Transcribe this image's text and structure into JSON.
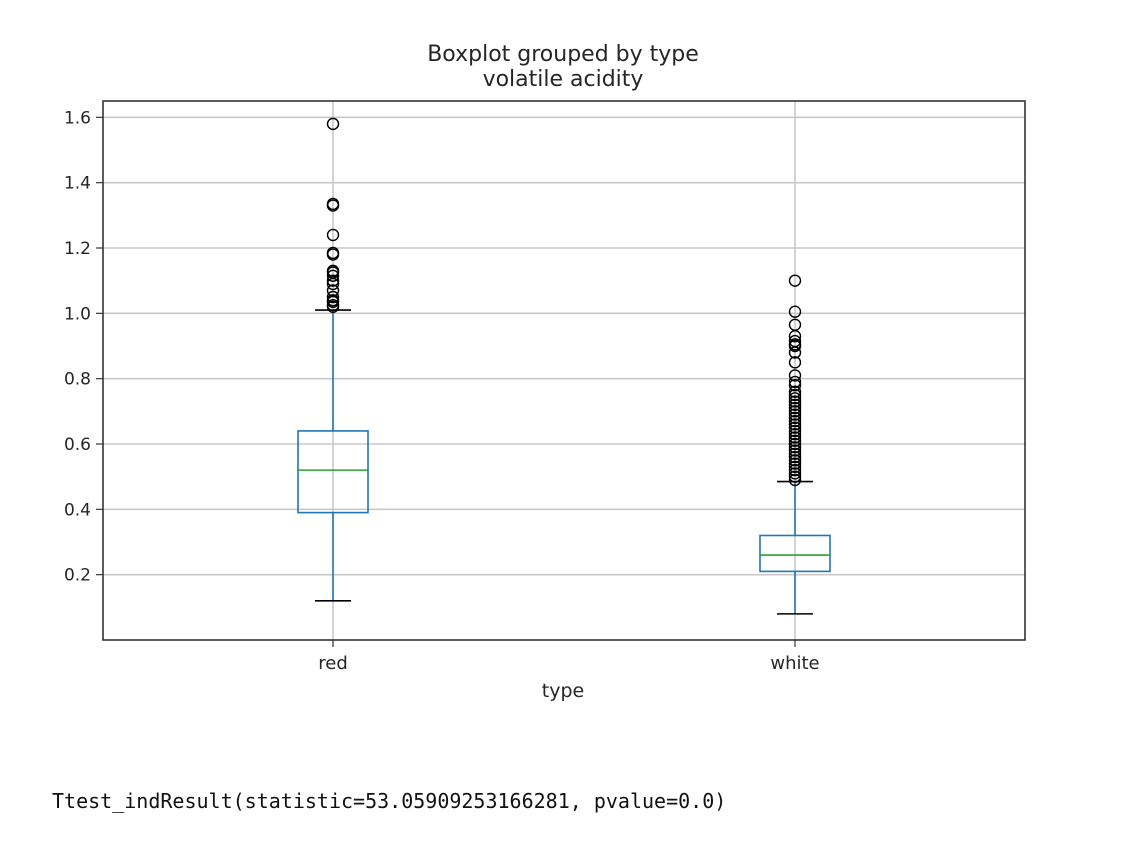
{
  "chart_data": {
    "type": "boxplot",
    "title": "Boxplot grouped by type",
    "subtitle": "volatile acidity",
    "xlabel": "type",
    "ylabel": "",
    "ylim": [
      0.0,
      1.65
    ],
    "yticks": [
      0.2,
      0.4,
      0.6,
      0.8,
      1.0,
      1.2,
      1.4,
      1.6
    ],
    "ytick_labels": [
      "0.2",
      "0.4",
      "0.6",
      "0.8",
      "1.0",
      "1.2",
      "1.4",
      "1.6"
    ],
    "grid": true,
    "categories": [
      "red",
      "white"
    ],
    "boxes": [
      {
        "name": "red",
        "whisker_low": 0.12,
        "q1": 0.39,
        "median": 0.52,
        "q3": 0.64,
        "whisker_high": 1.01,
        "outliers": [
          1.02,
          1.025,
          1.035,
          1.04,
          1.05,
          1.07,
          1.09,
          1.1,
          1.115,
          1.125,
          1.13,
          1.18,
          1.185,
          1.24,
          1.33,
          1.335,
          1.58
        ]
      },
      {
        "name": "white",
        "whisker_low": 0.08,
        "q1": 0.21,
        "median": 0.26,
        "q3": 0.32,
        "whisker_high": 0.485,
        "outliers": [
          0.49,
          0.5,
          0.51,
          0.52,
          0.53,
          0.54,
          0.55,
          0.56,
          0.57,
          0.58,
          0.59,
          0.6,
          0.61,
          0.62,
          0.63,
          0.64,
          0.65,
          0.66,
          0.67,
          0.68,
          0.69,
          0.7,
          0.71,
          0.72,
          0.73,
          0.74,
          0.75,
          0.76,
          0.78,
          0.79,
          0.81,
          0.85,
          0.88,
          0.9,
          0.905,
          0.915,
          0.93,
          0.965,
          1.005,
          1.1
        ]
      }
    ],
    "colors": {
      "box": "#1f77b4",
      "median": "#2ca02c",
      "whisker_cap": "#000000",
      "grid": "#c8c8c8",
      "frame": "#333333"
    }
  },
  "output": {
    "text": "Ttest_indResult(statistic=53.05909253166281, pvalue=0.0)"
  }
}
